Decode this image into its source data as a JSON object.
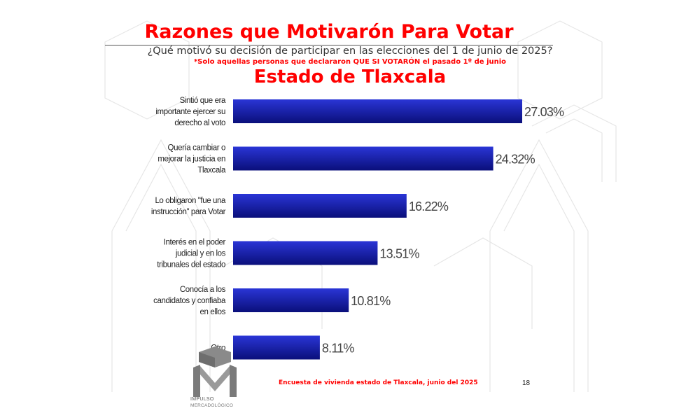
{
  "title": "Razones que Motivarón Para Votar",
  "subtitle": "¿Qué motivó su decisión de participar en las elecciones del 1 de junio de 2025?",
  "note": "*Solo aquellas personas que declararon QUE SI VOTARÓN el pasado 1º de junio",
  "region_title": "Estado de Tlaxcala",
  "footer": "Encuesta de vivienda estado de Tlaxcala, junio   del 2025",
  "page_number": "18",
  "logo": {
    "line1": "IMPULSO",
    "line2": "MERCADOLÓGICO"
  },
  "colors": {
    "bar_light": "#2a35d6",
    "bar_dark": "#0a0f7a",
    "title": "#ff0000"
  },
  "chart_data": {
    "type": "bar",
    "orientation": "horizontal",
    "categories": [
      [
        "Sintió que era",
        "importante ejercer su",
        "derecho al voto"
      ],
      [
        "Quería cambiar o",
        "mejorar la justicia en",
        "Tlaxcala"
      ],
      [
        "Lo obligaron \"fue una",
        "instrucción\" para Votar"
      ],
      [
        "Interés en el poder",
        "judicial y en los",
        "tribunales del estado"
      ],
      [
        "Conocía a los",
        "candidatos y confiaba",
        "en ellos"
      ],
      [
        "Otro"
      ]
    ],
    "values": [
      27.03,
      24.32,
      16.22,
      13.51,
      10.81,
      8.11
    ],
    "value_labels": [
      "27.03%",
      "24.32%",
      "16.22%",
      "13.51%",
      "10.81%",
      "8.11%"
    ],
    "xlim": [
      0,
      30
    ]
  }
}
